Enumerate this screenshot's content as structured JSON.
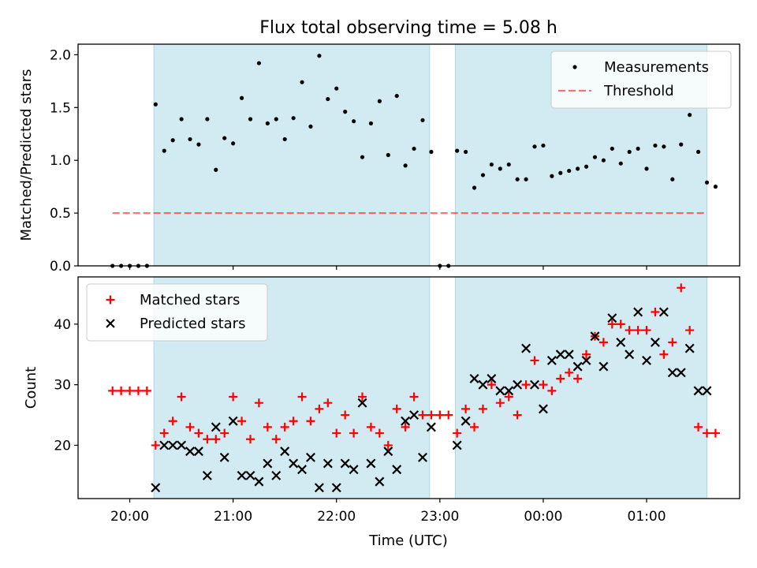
{
  "figure": {
    "title": "Flux total observing time = 5.08 h",
    "xlabel": "Time (UTC)",
    "x_ticks": [
      "20:00",
      "21:00",
      "22:00",
      "23:00",
      "00:00",
      "01:00"
    ],
    "shaded_color": "#add8e6"
  },
  "chart_data": [
    {
      "type": "scatter",
      "panel": "top",
      "ylabel": "Matched/Predicted stars",
      "ylim": [
        0,
        2.1
      ],
      "xlim_hours": [
        19.5,
        25.9
      ],
      "y_ticks": [
        "0.0",
        "0.5",
        "1.0",
        "1.5",
        "2.0"
      ],
      "legend": {
        "placement": "top-right",
        "entries": [
          "Measurements",
          "Threshold"
        ]
      },
      "shaded_intervals": [
        [
          "20:14",
          "22:54"
        ],
        [
          "23:09",
          "01:35"
        ]
      ],
      "threshold": {
        "name": "Threshold",
        "value": 0.5,
        "x_range": [
          "19:50",
          "01:35"
        ],
        "color": "#ff0000",
        "style": "dashed"
      },
      "series": [
        {
          "name": "Measurements",
          "color": "#000000",
          "x": [
            "19:50",
            "19:55",
            "20:00",
            "20:05",
            "20:10",
            "20:15",
            "20:20",
            "20:25",
            "20:30",
            "20:35",
            "20:40",
            "20:45",
            "20:50",
            "20:55",
            "21:00",
            "21:05",
            "21:10",
            "21:15",
            "21:20",
            "21:25",
            "21:30",
            "21:35",
            "21:40",
            "21:45",
            "21:50",
            "21:55",
            "22:00",
            "22:05",
            "22:10",
            "22:15",
            "22:20",
            "22:25",
            "22:30",
            "22:35",
            "22:40",
            "22:45",
            "22:50",
            "22:55",
            "23:00",
            "23:05",
            "23:10",
            "23:15",
            "23:20",
            "23:25",
            "23:30",
            "23:35",
            "23:40",
            "23:45",
            "23:50",
            "23:55",
            "00:00",
            "00:05",
            "00:10",
            "00:15",
            "00:20",
            "00:25",
            "00:30",
            "00:35",
            "00:40",
            "00:45",
            "00:50",
            "00:55",
            "01:00",
            "01:05",
            "01:10",
            "01:15",
            "01:20",
            "01:25",
            "01:30",
            "01:35",
            "01:40"
          ],
          "y": [
            0.0,
            0.0,
            0.0,
            0.0,
            0.0,
            1.53,
            1.09,
            1.19,
            1.39,
            1.2,
            1.15,
            1.39,
            0.91,
            1.21,
            1.16,
            1.59,
            1.39,
            1.92,
            1.35,
            1.39,
            1.2,
            1.4,
            1.74,
            1.32,
            1.99,
            1.58,
            1.68,
            1.46,
            1.37,
            1.03,
            1.35,
            1.56,
            1.05,
            1.61,
            0.95,
            1.11,
            1.38,
            1.08,
            0.0,
            0.0,
            1.09,
            1.08,
            0.74,
            0.86,
            0.96,
            0.92,
            0.96,
            0.82,
            0.82,
            1.13,
            1.14,
            0.85,
            0.88,
            0.9,
            0.92,
            0.94,
            1.03,
            1.0,
            1.11,
            0.97,
            1.08,
            1.11,
            0.92,
            1.14,
            1.13,
            0.82,
            1.15,
            1.43,
            1.08,
            0.79,
            0.75
          ]
        }
      ]
    },
    {
      "type": "scatter",
      "panel": "bottom",
      "ylabel": "Count",
      "ylim": [
        11.2,
        47.8
      ],
      "xlim_hours": [
        19.5,
        25.9
      ],
      "y_ticks": [
        "20",
        "30",
        "40"
      ],
      "legend": {
        "placement": "top-left",
        "entries": [
          "Matched stars",
          "Predicted stars"
        ]
      },
      "shaded_intervals": [
        [
          "20:14",
          "22:54"
        ],
        [
          "23:09",
          "01:35"
        ]
      ],
      "series": [
        {
          "name": "Matched stars",
          "marker": "+",
          "color": "#ff0000",
          "x": [
            "19:50",
            "19:55",
            "20:00",
            "20:05",
            "20:10",
            "20:15",
            "20:20",
            "20:25",
            "20:30",
            "20:35",
            "20:40",
            "20:45",
            "20:50",
            "20:55",
            "21:00",
            "21:05",
            "21:10",
            "21:15",
            "21:20",
            "21:25",
            "21:30",
            "21:35",
            "21:40",
            "21:45",
            "21:50",
            "21:55",
            "22:00",
            "22:05",
            "22:10",
            "22:15",
            "22:20",
            "22:25",
            "22:30",
            "22:35",
            "22:40",
            "22:45",
            "22:50",
            "22:55",
            "23:00",
            "23:05",
            "23:10",
            "23:15",
            "23:20",
            "23:25",
            "23:30",
            "23:35",
            "23:40",
            "23:45",
            "23:50",
            "23:55",
            "00:00",
            "00:05",
            "00:10",
            "00:15",
            "00:20",
            "00:25",
            "00:30",
            "00:35",
            "00:40",
            "00:45",
            "00:50",
            "00:55",
            "01:00",
            "01:05",
            "01:10",
            "01:15",
            "01:20",
            "01:25",
            "01:30",
            "01:35",
            "01:40"
          ],
          "y": [
            29,
            29,
            29,
            29,
            29,
            20,
            22,
            24,
            28,
            23,
            22,
            21,
            21,
            22,
            28,
            24,
            21,
            27,
            23,
            21,
            23,
            24,
            28,
            24,
            26,
            27,
            22,
            25,
            22,
            28,
            23,
            22,
            20,
            26,
            23,
            28,
            25,
            25,
            25,
            25,
            22,
            26,
            23,
            26,
            30,
            27,
            28,
            25,
            30,
            34,
            30,
            29,
            31,
            32,
            31,
            35,
            38,
            37,
            40,
            40,
            39,
            39,
            39,
            42,
            35,
            37,
            46,
            39,
            23,
            22,
            22
          ]
        },
        {
          "name": "Predicted stars",
          "marker": "x",
          "color": "#000000",
          "x": [
            "20:15",
            "20:20",
            "20:25",
            "20:30",
            "20:35",
            "20:40",
            "20:45",
            "20:50",
            "20:55",
            "21:00",
            "21:05",
            "21:10",
            "21:15",
            "21:20",
            "21:25",
            "21:30",
            "21:35",
            "21:40",
            "21:45",
            "21:50",
            "21:55",
            "22:00",
            "22:05",
            "22:10",
            "22:15",
            "22:20",
            "22:25",
            "22:30",
            "22:35",
            "22:40",
            "22:45",
            "22:50",
            "22:55",
            "23:10",
            "23:15",
            "23:20",
            "23:25",
            "23:30",
            "23:35",
            "23:40",
            "23:45",
            "23:50",
            "23:55",
            "00:00",
            "00:05",
            "00:10",
            "00:15",
            "00:20",
            "00:25",
            "00:30",
            "00:35",
            "00:40",
            "00:45",
            "00:50",
            "00:55",
            "01:00",
            "01:05",
            "01:10",
            "01:15",
            "01:20",
            "01:25",
            "01:30",
            "01:35"
          ],
          "y": [
            13,
            20,
            20,
            20,
            19,
            19,
            15,
            23,
            18,
            24,
            15,
            15,
            14,
            17,
            15,
            19,
            17,
            16,
            18,
            13,
            17,
            13,
            17,
            16,
            27,
            17,
            14,
            19,
            16,
            24,
            25,
            18,
            23,
            20,
            24,
            31,
            30,
            31,
            29,
            29,
            30,
            36,
            30,
            26,
            34,
            35,
            35,
            33,
            34,
            38,
            33,
            41,
            37,
            35,
            42,
            34,
            37,
            42,
            32,
            32,
            36,
            29,
            29
          ]
        }
      ]
    }
  ]
}
